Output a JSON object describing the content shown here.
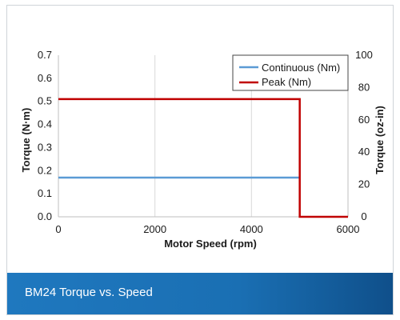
{
  "caption": "BM24 Torque vs. Speed",
  "chart_data": {
    "type": "line",
    "xlabel": "Motor Speed (rpm)",
    "ylabel": "Torque (N·m)",
    "y2label": "Torque (oz-in)",
    "xlim": [
      0,
      6000
    ],
    "ylim": [
      0,
      0.7
    ],
    "y2lim": [
      0,
      100
    ],
    "xticks": [
      "0",
      "2000",
      "4000",
      "6000"
    ],
    "yticks": [
      "0.0",
      "0.1",
      "0.2",
      "0.3",
      "0.4",
      "0.5",
      "0.6",
      "0.7"
    ],
    "y2ticks": [
      "0",
      "20",
      "40",
      "60",
      "80",
      "100"
    ],
    "grid": "vertical",
    "legend_position": "top-right",
    "series": [
      {
        "name": "Continuous (Nm)",
        "color": "#5b9bd5",
        "x": [
          0,
          5000
        ],
        "y": [
          0.17,
          0.17
        ]
      },
      {
        "name": "Peak (Nm)",
        "color": "#c00000",
        "x": [
          0,
          5000,
          5000,
          6000
        ],
        "y": [
          0.51,
          0.51,
          0,
          0
        ]
      }
    ]
  }
}
